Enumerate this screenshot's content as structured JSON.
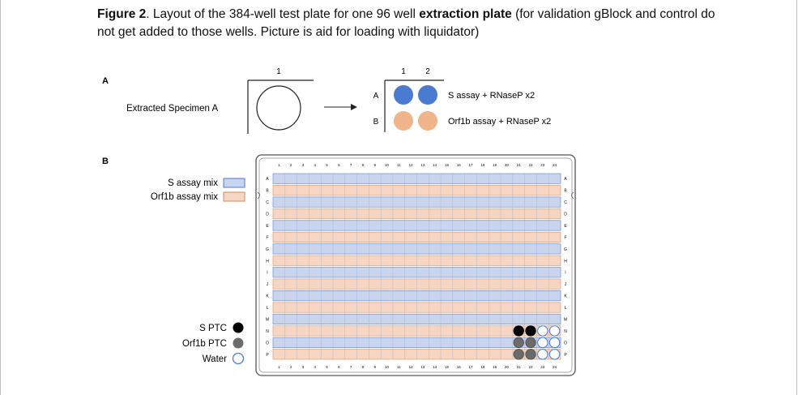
{
  "caption": {
    "label": "Figure 2",
    "text_part1": ". Layout of the 384-well test plate for one 96 well ",
    "bold_phrase": "extraction plate",
    "text_part2": " (for validation gBlock and control do not get added to those wells. Picture is aid for loading with liquidator)"
  },
  "panel_a": {
    "label": "A",
    "specimen_label": "Extracted Specimen  A",
    "column_header_left": "1",
    "column_headers_right": [
      "1",
      "2"
    ],
    "row_labels": [
      "A",
      "B"
    ],
    "legend_s": "S assay + RNaseP x2",
    "legend_orf": "Orf1b assay + RNaseP x2"
  },
  "panel_b": {
    "label": "B",
    "legend_mix": [
      {
        "label": "S assay mix",
        "color": "#c9d5ee"
      },
      {
        "label": "Orf1b assay mix",
        "color": "#f6d6c2"
      }
    ],
    "legend_controls": [
      {
        "label": "S PTC",
        "color": "#000000"
      },
      {
        "label": "Orf1b PTC",
        "color": "#6b6b6b"
      },
      {
        "label": "Water",
        "color": "#ffffff"
      }
    ],
    "columns": [
      "1",
      "2",
      "3",
      "4",
      "5",
      "6",
      "7",
      "8",
      "9",
      "10",
      "11",
      "12",
      "13",
      "14",
      "15",
      "16",
      "17",
      "18",
      "19",
      "20",
      "21",
      "22",
      "23",
      "24"
    ],
    "rows": [
      "A",
      "B",
      "C",
      "D",
      "E",
      "F",
      "G",
      "H",
      "I",
      "J",
      "K",
      "L",
      "M",
      "N",
      "O",
      "P"
    ],
    "row_colors": [
      "#c9d5ee",
      "#f6d6c2"
    ],
    "controls": [
      {
        "row": "N",
        "col": "21",
        "type": "S PTC"
      },
      {
        "row": "N",
        "col": "22",
        "type": "S PTC"
      },
      {
        "row": "N",
        "col": "23",
        "type": "Water"
      },
      {
        "row": "N",
        "col": "24",
        "type": "Water"
      },
      {
        "row": "O",
        "col": "21",
        "type": "Orf1b PTC"
      },
      {
        "row": "O",
        "col": "22",
        "type": "Orf1b PTC"
      },
      {
        "row": "O",
        "col": "23",
        "type": "Water"
      },
      {
        "row": "O",
        "col": "24",
        "type": "Water"
      },
      {
        "row": "P",
        "col": "21",
        "type": "Orf1b PTC"
      },
      {
        "row": "P",
        "col": "22",
        "type": "Orf1b PTC"
      },
      {
        "row": "P",
        "col": "23",
        "type": "Water"
      },
      {
        "row": "P",
        "col": "24",
        "type": "Water"
      }
    ]
  },
  "colors": {
    "s_well": "#4a7bd0",
    "orf_well": "#f0b48a",
    "plate_border": "#555555"
  }
}
